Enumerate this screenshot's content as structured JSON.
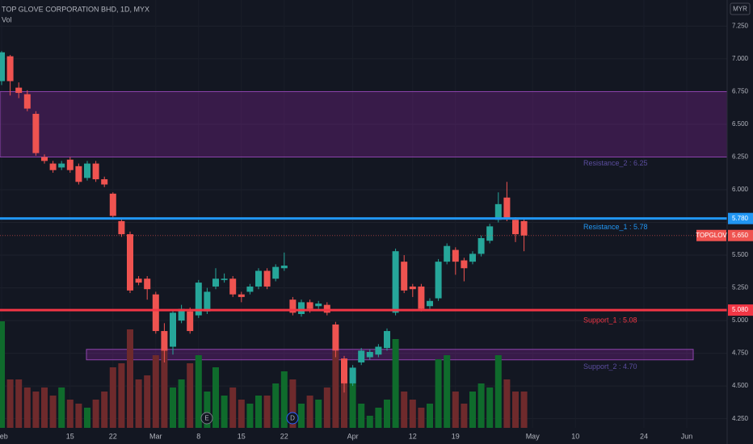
{
  "chart_data": {
    "type": "candlestick",
    "title": "TOP GLOVE CORPORATION BHD, 1D, MYX",
    "subtitle": "Vol",
    "currency": "MYR",
    "categories": [
      "Feb",
      null,
      null,
      null,
      null,
      null,
      null,
      null,
      "15",
      null,
      null,
      null,
      null,
      "22",
      null,
      null,
      null,
      null,
      "Mar",
      null,
      null,
      null,
      null,
      "8",
      null,
      null,
      null,
      null,
      "15",
      null,
      null,
      null,
      null,
      "22",
      null,
      null,
      null,
      null,
      null,
      null,
      null,
      "Apr",
      null,
      null,
      null,
      null,
      null,
      null,
      "12",
      null,
      null,
      null,
      null,
      "19",
      null,
      null,
      null,
      null,
      null,
      null,
      null,
      null,
      "May",
      null,
      null,
      null,
      null,
      "10",
      null,
      null,
      null,
      null,
      null,
      null,
      null,
      "24",
      null,
      null,
      null,
      null,
      "Jun",
      null,
      null,
      null,
      null
    ],
    "open": [
      6.83,
      7.02,
      6.78,
      6.73,
      6.58,
      6.25,
      6.2,
      6.17,
      6.23,
      6.18,
      6.09,
      6.2,
      6.08,
      5.97,
      5.76,
      5.66,
      5.32,
      5.32,
      5.2,
      4.92,
      4.8,
      5.0,
      5.07,
      5.04,
      5.07,
      5.26,
      5.31,
      5.32,
      5.2,
      5.22,
      5.26,
      5.38,
      5.32,
      5.4,
      5.16,
      5.05,
      5.14,
      5.11,
      5.12,
      4.97,
      4.71,
      4.52,
      4.68,
      4.72,
      4.74,
      4.79,
      5.06,
      5.45,
      5.26,
      5.26,
      5.11,
      5.17,
      5.45,
      5.54,
      5.46,
      5.45,
      5.51,
      5.61,
      5.77,
      5.94,
      5.77,
      5.76,
      null,
      null,
      null,
      null,
      null,
      null,
      null,
      null,
      null,
      null,
      null,
      null,
      null,
      null,
      null,
      null,
      null,
      null,
      null,
      null,
      null,
      null,
      null
    ],
    "high": [
      7.06,
      7.03,
      6.82,
      6.76,
      6.6,
      6.27,
      6.22,
      6.22,
      6.25,
      6.2,
      6.22,
      6.22,
      6.1,
      5.98,
      5.78,
      5.68,
      5.34,
      5.34,
      5.22,
      4.98,
      5.08,
      5.12,
      5.1,
      5.31,
      5.25,
      5.4,
      5.36,
      5.34,
      5.22,
      5.28,
      5.4,
      5.4,
      5.43,
      5.52,
      5.18,
      5.16,
      5.16,
      5.15,
      5.14,
      4.99,
      4.73,
      4.66,
      4.79,
      4.78,
      4.82,
      4.94,
      5.55,
      5.5,
      5.28,
      5.28,
      5.17,
      5.47,
      5.59,
      5.56,
      5.48,
      5.53,
      5.65,
      5.74,
      5.98,
      6.06,
      5.79,
      5.78,
      null,
      null,
      null,
      null,
      null,
      null,
      null,
      null,
      null,
      null,
      null,
      null,
      null,
      null,
      null,
      null,
      null,
      null,
      null,
      null,
      null,
      null,
      null
    ],
    "low": [
      6.8,
      6.72,
      6.7,
      6.6,
      6.26,
      6.2,
      6.13,
      6.15,
      6.13,
      6.04,
      6.07,
      6.06,
      6.02,
      5.78,
      5.64,
      5.21,
      5.27,
      5.16,
      4.9,
      4.68,
      4.74,
      4.98,
      4.9,
      5.02,
      5.05,
      5.24,
      5.29,
      5.18,
      5.14,
      5.2,
      5.24,
      5.24,
      5.3,
      5.38,
      5.04,
      5.03,
      5.06,
      5.09,
      5.04,
      4.72,
      4.45,
      4.5,
      4.66,
      4.7,
      4.72,
      4.77,
      5.04,
      5.21,
      5.18,
      5.07,
      5.09,
      5.15,
      5.43,
      5.35,
      5.3,
      5.43,
      5.49,
      5.59,
      5.75,
      5.76,
      5.6,
      5.53,
      null,
      null,
      null,
      null,
      null,
      null,
      null,
      null,
      null,
      null,
      null,
      null,
      null,
      null,
      null,
      null,
      null,
      null,
      null,
      null,
      null,
      null,
      null
    ],
    "close": [
      7.05,
      6.83,
      6.74,
      6.62,
      6.28,
      6.22,
      6.15,
      6.2,
      6.15,
      6.06,
      6.2,
      6.08,
      6.04,
      5.8,
      5.66,
      5.23,
      5.29,
      5.24,
      4.92,
      4.77,
      5.06,
      5.09,
      4.92,
      5.29,
      5.22,
      5.32,
      5.32,
      5.2,
      5.18,
      5.26,
      5.38,
      5.26,
      5.41,
      5.42,
      5.06,
      5.14,
      5.09,
      5.13,
      5.06,
      4.77,
      4.52,
      4.64,
      4.77,
      4.76,
      4.8,
      4.92,
      5.53,
      5.23,
      5.24,
      5.09,
      5.15,
      5.45,
      5.57,
      5.45,
      5.4,
      5.51,
      5.63,
      5.72,
      5.89,
      5.78,
      5.66,
      5.65,
      null,
      null,
      null,
      null,
      null,
      null,
      null,
      null,
      null,
      null,
      null,
      null,
      null,
      null,
      null,
      null,
      null,
      null,
      null,
      null,
      null,
      null,
      null
    ],
    "volume": [
      132,
      60,
      60,
      50,
      45,
      50,
      40,
      50,
      35,
      30,
      25,
      35,
      45,
      75,
      80,
      122,
      60,
      65,
      90,
      100,
      50,
      60,
      80,
      90,
      45,
      75,
      40,
      50,
      35,
      30,
      40,
      40,
      55,
      70,
      60,
      30,
      40,
      35,
      50,
      95,
      85,
      70,
      30,
      15,
      25,
      35,
      110,
      45,
      35,
      25,
      30,
      85,
      90,
      45,
      30,
      45,
      55,
      50,
      90,
      60,
      45,
      45,
      null,
      null,
      null,
      null,
      null,
      null,
      null,
      null,
      null,
      null,
      null,
      null,
      null,
      null,
      null,
      null,
      null,
      null,
      null,
      null,
      null,
      null,
      null
    ],
    "volume_ylim": [
      0,
      140
    ],
    "up_color": "#26a69a",
    "down_color": "#ef5350",
    "volume_up_color": "#0f6b2c",
    "volume_down_color": "#6e2a2c",
    "ylim": [
      4.18,
      7.45
    ],
    "yticks": [
      {
        "value": 7.25,
        "label": "7.250"
      },
      {
        "value": 7,
        "label": "7.000"
      },
      {
        "value": 6.75,
        "label": "6.750"
      },
      {
        "value": 6.5,
        "label": "6.500"
      },
      {
        "value": 6.25,
        "label": "6.250"
      },
      {
        "value": 6,
        "label": "6.000"
      },
      {
        "value": 5.75,
        "label": "5.750"
      },
      {
        "value": 5.5,
        "label": "5.500"
      },
      {
        "value": 5.25,
        "label": "5.250"
      },
      {
        "value": 5,
        "label": "5.000"
      },
      {
        "value": 4.75,
        "label": "4.750"
      },
      {
        "value": 4.5,
        "label": "4.500"
      },
      {
        "value": 4.25,
        "label": "4.250"
      }
    ],
    "grid": true,
    "zones": [
      {
        "label": "Resistance_2 : 6.25",
        "low": 6.25,
        "high": 6.75
      },
      {
        "label": "Support_2 : 4.70",
        "low": 4.7,
        "high": 4.78
      }
    ],
    "lines": [
      {
        "label": "Resistance_1 : 5.78",
        "value": 5.78,
        "tag": "5.780",
        "color": "#2196f3"
      },
      {
        "label": "Support_1 : 5.08",
        "value": 5.08,
        "tag": "5.080",
        "color": "#f23645"
      }
    ],
    "last_price": {
      "symbol": "TOPGLOV",
      "value": 5.65,
      "tag": "5.650"
    },
    "events": [
      "E",
      "D"
    ]
  }
}
